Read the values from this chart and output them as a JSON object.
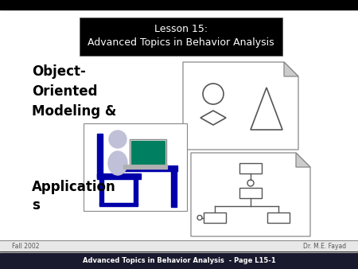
{
  "bg_color": "#e8e8e8",
  "slide_bg": "#ffffff",
  "title_box_color": "#000000",
  "title_line1": "Lesson 15:",
  "title_line2": "Advanced Topics in Behavior Analysis",
  "title_text_color": "#ffffff",
  "main_text_line1": "Object-",
  "main_text_line2": "Oriented",
  "main_text_line3": "Modeling &",
  "main_text_line4": "Application",
  "main_text_line5": "s",
  "main_text_color": "#000000",
  "footer_left": "Fall 2002",
  "footer_right": "Dr. M.E. Fayad",
  "footer_bar_text": "Advanced Topics in Behavior Analysis  - Page L15-1",
  "footer_bar_color": "#1a1a2e",
  "footer_bar_text_color": "#ffffff",
  "top_bar_color": "#000000",
  "chair_color": "#0000aa",
  "person_color": "#c0c0d8",
  "laptop_screen_color": "#008060",
  "laptop_body_color": "#a0a0a0",
  "doc_edge_color": "#888888",
  "uml_line_color": "#555555"
}
